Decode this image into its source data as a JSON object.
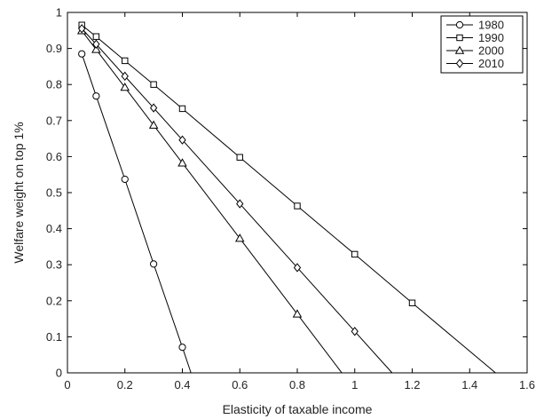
{
  "chart_data": {
    "type": "line",
    "title": "",
    "xlabel": "Elasticity of taxable income",
    "ylabel": "Welfare weight on top 1%",
    "xlim": [
      0,
      1.6
    ],
    "ylim": [
      0,
      1
    ],
    "xticks": [
      0,
      0.2,
      0.4,
      0.6,
      0.8,
      1,
      1.2,
      1.4,
      1.6
    ],
    "yticks": [
      0,
      0.1,
      0.2,
      0.3,
      0.4,
      0.5,
      0.6,
      0.7,
      0.8,
      0.9,
      1
    ],
    "xtick_labels": [
      "0",
      "0.2",
      "0.4",
      "0.6",
      "0.8",
      "1",
      "1.2",
      "1.4",
      "1.6"
    ],
    "ytick_labels": [
      "0",
      "0.1",
      "0.2",
      "0.3",
      "0.4",
      "0.5",
      "0.6",
      "0.7",
      "0.8",
      "0.9",
      "1"
    ],
    "grid": false,
    "legend_position": "top-right",
    "series": [
      {
        "name": "1980",
        "marker": "circle",
        "points": [
          [
            0.05,
            0.885
          ],
          [
            0.1,
            0.768
          ],
          [
            0.2,
            0.537
          ],
          [
            0.3,
            0.302
          ],
          [
            0.4,
            0.071
          ]
        ],
        "line_end": [
          0.43,
          0
        ]
      },
      {
        "name": "1990",
        "marker": "square",
        "points": [
          [
            0.05,
            0.965
          ],
          [
            0.1,
            0.933
          ],
          [
            0.2,
            0.866
          ],
          [
            0.3,
            0.8
          ],
          [
            0.4,
            0.733
          ],
          [
            0.6,
            0.598
          ],
          [
            0.8,
            0.463
          ],
          [
            1.0,
            0.329
          ],
          [
            1.2,
            0.194
          ]
        ],
        "line_end": [
          1.49,
          0
        ]
      },
      {
        "name": "2000",
        "marker": "triangle",
        "points": [
          [
            0.05,
            0.949
          ],
          [
            0.1,
            0.897
          ],
          [
            0.2,
            0.792
          ],
          [
            0.3,
            0.687
          ],
          [
            0.4,
            0.582
          ],
          [
            0.6,
            0.373
          ],
          [
            0.8,
            0.163
          ]
        ],
        "line_end": [
          0.955,
          0
        ]
      },
      {
        "name": "2010",
        "marker": "diamond",
        "points": [
          [
            0.05,
            0.955
          ],
          [
            0.1,
            0.912
          ],
          [
            0.2,
            0.823
          ],
          [
            0.3,
            0.735
          ],
          [
            0.4,
            0.646
          ],
          [
            0.6,
            0.469
          ],
          [
            0.8,
            0.292
          ],
          [
            1.0,
            0.115
          ]
        ],
        "line_end": [
          1.13,
          0
        ]
      }
    ]
  }
}
